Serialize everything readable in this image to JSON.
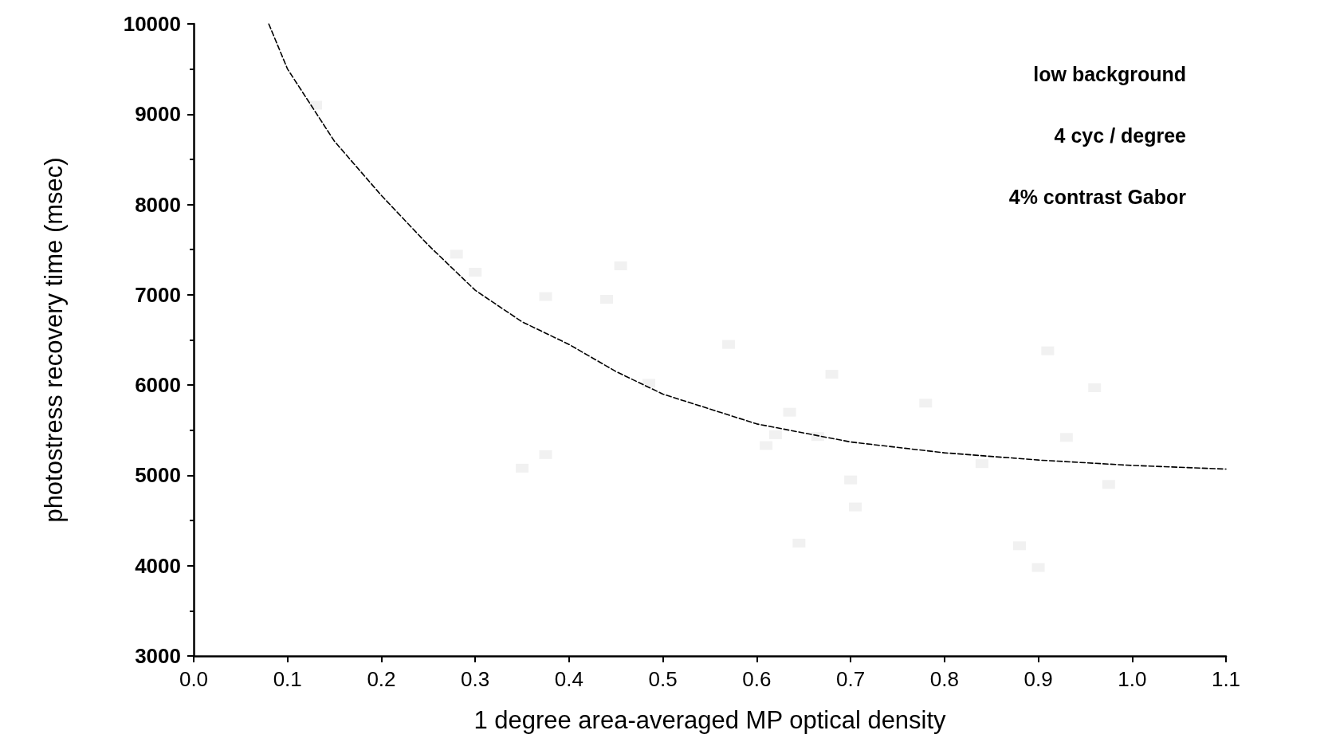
{
  "chart_data": {
    "type": "scatter",
    "xlabel": "1 degree area-averaged MP optical density",
    "ylabel": "photostress recovery time (msec)",
    "annotations": [
      "low background",
      "4 cyc / degree",
      "4% contrast Gabor"
    ],
    "xlim": [
      0,
      1.1
    ],
    "xticks": [
      {
        "value": 0,
        "label": "0.0"
      },
      0.1,
      0.2,
      0.3,
      0.4,
      0.5,
      0.6,
      0.7,
      0.8,
      0.9,
      {
        "value": 1,
        "label": "1.0"
      },
      1.1
    ],
    "ylim": [
      3000,
      10000
    ],
    "yticks": [
      3000,
      4000,
      5000,
      6000,
      7000,
      8000,
      9000,
      10000
    ],
    "grid": false,
    "series": [
      {
        "marker": "square",
        "color": "#eeeeee",
        "x": [
          0.13,
          0.28,
          0.3,
          0.375,
          0.44,
          0.455,
          0.485,
          0.57,
          0.35,
          0.375,
          0.61,
          0.62,
          0.635,
          0.645,
          0.665,
          0.68,
          0.7,
          0.705,
          0.78,
          0.84,
          0.88,
          0.9,
          0.91,
          0.93,
          0.96,
          0.975
        ],
        "values": [
          9100,
          7450,
          7250,
          6980,
          6950,
          7320,
          6020,
          6450,
          5080,
          5230,
          5330,
          5450,
          5700,
          4250,
          5430,
          6120,
          4950,
          4650,
          5800,
          5130,
          4220,
          3980,
          6380,
          5420,
          5970,
          4900
        ]
      },
      {
        "type": "line",
        "line_style": "dashed",
        "marker": "none",
        "color": "#000000",
        "x": [
          0.08,
          0.1,
          0.15,
          0.2,
          0.25,
          0.3,
          0.35,
          0.4,
          0.45,
          0.5,
          0.6,
          0.7,
          0.8,
          0.9,
          1.0,
          1.1
        ],
        "values": [
          10000,
          9500,
          8700,
          8100,
          7550,
          7050,
          6700,
          6450,
          6150,
          5900,
          5570,
          5370,
          5250,
          5170,
          5110,
          5070
        ]
      }
    ]
  }
}
